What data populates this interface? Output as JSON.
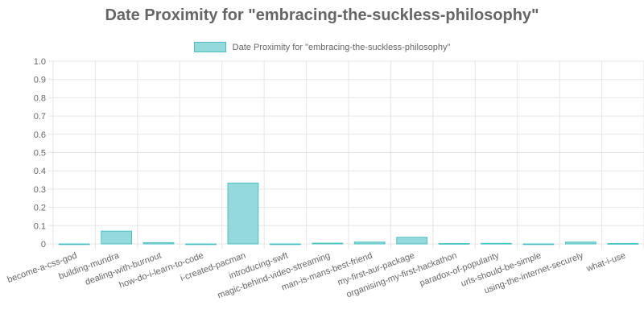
{
  "chart_data": {
    "type": "bar",
    "title": "Date Proximity for \"embracing-the-suckless-philosophy\"",
    "legend": {
      "position": "top",
      "entries": [
        {
          "name": "Date Proximity for \"embracing-the-suckless-philosophy\""
        }
      ]
    },
    "categories": [
      "become-a-css-god",
      "building-mundra",
      "dealing-with-burnout",
      "how-do-i-learn-to-code",
      "i-created-pacman",
      "introducing-swft",
      "magic-behind-video-streaming",
      "man-is-mans-best-friend",
      "my-first-aur-package",
      "organising-my-first-hackathon",
      "paradox-of-popularity",
      "urls-should-be-simple",
      "using-the-internet-securely",
      "what-i-use"
    ],
    "series": [
      {
        "name": "Date Proximity for \"embracing-the-suckless-philosophy\"",
        "values": [
          0,
          0.07,
          0.007,
          0,
          0.333,
          0,
          0.004,
          0.01,
          0.036,
          0.002,
          0.003,
          0,
          0.01,
          0.002
        ]
      }
    ],
    "ylim": [
      0,
      1
    ],
    "yticks": [
      "0",
      "0.1",
      "0.2",
      "0.3",
      "0.4",
      "0.5",
      "0.6",
      "0.7",
      "0.8",
      "0.9",
      "1.0"
    ],
    "ytick_values": [
      0,
      0.1,
      0.2,
      0.3,
      0.4,
      0.5,
      0.6,
      0.7,
      0.8,
      0.9,
      1.0
    ],
    "grid": true,
    "colors": {
      "bar_fill": "#4bc0c0",
      "bar_fill_alpha": "#95dadb",
      "grid": "#e5e5e5",
      "text": "#666666"
    }
  }
}
